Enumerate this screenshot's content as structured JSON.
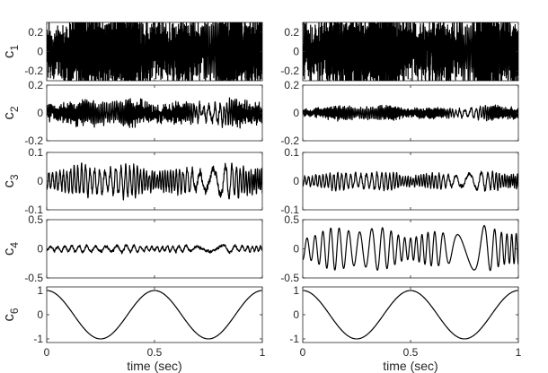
{
  "chart_data": {
    "type": "line",
    "layout": "5 rows x 2 columns of stacked time-series panels; left and right columns show two different signals decomposed into the same components",
    "colors": {
      "trace": "#000000",
      "axes": "#262626",
      "background": "#ffffff"
    },
    "xlabel": "time (sec)",
    "xlim": [
      0,
      1
    ],
    "xticks": [
      0,
      0.5,
      1
    ],
    "xtick_labels": [
      "0",
      "0.5",
      "1"
    ],
    "rows": [
      {
        "label_main": "c",
        "label_sub": "1",
        "ylim": [
          -0.3,
          0.3
        ],
        "yticks": [
          -0.2,
          0,
          0.2
        ],
        "ytick_labels": [
          "-0.2",
          "0",
          "0.2"
        ],
        "columns": [
          {
            "description": "dense high-frequency noise",
            "components": [
              {
                "freq": 520,
                "amp": 0.25
              }
            ],
            "noise": 0.12
          },
          {
            "description": "dense high-frequency noise",
            "components": [
              {
                "freq": 520,
                "amp": 0.25
              }
            ],
            "noise": 0.12
          }
        ]
      },
      {
        "label_main": "c",
        "label_sub": "2",
        "ylim": [
          -0.2,
          0.2
        ],
        "yticks": [
          -0.2,
          0,
          0.2
        ],
        "ytick_labels": [
          "-0.2",
          "0",
          "0.2"
        ],
        "columns": [
          {
            "description": "high-frequency oscillation, peak about 0.13",
            "components": [
              {
                "freq": 150,
                "amp": 0.05
              }
            ],
            "noise": 0.03
          },
          {
            "description": "high-frequency oscillation, peak about 0.05",
            "components": [
              {
                "freq": 150,
                "amp": 0.03
              }
            ],
            "noise": 0.012
          }
        ]
      },
      {
        "label_main": "c",
        "label_sub": "3",
        "ylim": [
          -0.1,
          0.1
        ],
        "yticks": [
          -0.1,
          0,
          0.1
        ],
        "ytick_labels": [
          "-0.1",
          "0",
          "0.1"
        ],
        "columns": [
          {
            "description": "mid-frequency oscillation, peak about 0.06",
            "components": [
              {
                "freq": 55,
                "amp": 0.035
              }
            ],
            "noise": 0.012
          },
          {
            "description": "mid-frequency oscillation, peak about 0.03",
            "components": [
              {
                "freq": 55,
                "amp": 0.02
              }
            ],
            "noise": 0.006
          }
        ]
      },
      {
        "label_main": "c",
        "label_sub": "4",
        "ylim": [
          -0.5,
          0.5
        ],
        "yticks": [
          -0.5,
          0,
          0.5
        ],
        "ytick_labels": [
          "-0.5",
          "0",
          "0.5"
        ],
        "columns": [
          {
            "description": "small oscillation about 0.05, bursts near 0.7 s",
            "components": [
              {
                "freq": 28,
                "amp": 0.04
              }
            ],
            "noise": 0.02
          },
          {
            "description": "regular sinusoid, amplitude about 0.25",
            "components": [
              {
                "freq": 25,
                "amp": 0.25
              }
            ],
            "noise": 0.0
          }
        ]
      },
      {
        "label_main": "c",
        "label_sub": "6",
        "ylim": [
          -1.15,
          1.15
        ],
        "yticks": [
          -1,
          0,
          1
        ],
        "ytick_labels": [
          "-1",
          "0",
          "1"
        ],
        "columns": [
          {
            "description": "slow cosine, 2 cycles per second",
            "components": [
              {
                "freq": 2,
                "amp": 1.0,
                "type": "cos"
              }
            ],
            "noise": 0.0
          },
          {
            "description": "slow cosine, 2 cycles per second",
            "components": [
              {
                "freq": 2,
                "amp": 1.0,
                "type": "cos"
              }
            ],
            "noise": 0.0
          }
        ]
      }
    ]
  }
}
